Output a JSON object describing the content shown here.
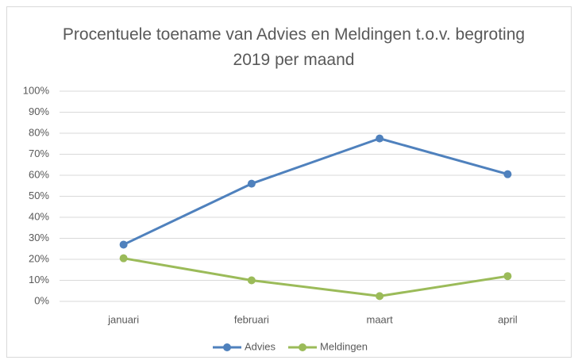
{
  "chart_data": {
    "type": "line",
    "title": "Procentuele toename van Advies en Meldingen t.o.v. begroting 2019 per maand",
    "categories": [
      "januari",
      "februari",
      "maart",
      "april"
    ],
    "series": [
      {
        "name": "Advies",
        "color": "#4f81bd",
        "values": [
          27,
          56,
          77.5,
          60.5
        ]
      },
      {
        "name": "Meldingen",
        "color": "#9bbb59",
        "values": [
          20.5,
          10,
          2.5,
          12
        ]
      }
    ],
    "ylim": [
      0,
      100
    ],
    "yticks": [
      {
        "value": 0,
        "label": "0%"
      },
      {
        "value": 10,
        "label": "10%"
      },
      {
        "value": 20,
        "label": "20%"
      },
      {
        "value": 30,
        "label": "30%"
      },
      {
        "value": 40,
        "label": "40%"
      },
      {
        "value": 50,
        "label": "50%"
      },
      {
        "value": 60,
        "label": "60%"
      },
      {
        "value": 70,
        "label": "70%"
      },
      {
        "value": 80,
        "label": "80%"
      },
      {
        "value": 90,
        "label": "90%"
      },
      {
        "value": 100,
        "label": "100%"
      }
    ],
    "grid": true,
    "legend": "bottom"
  }
}
